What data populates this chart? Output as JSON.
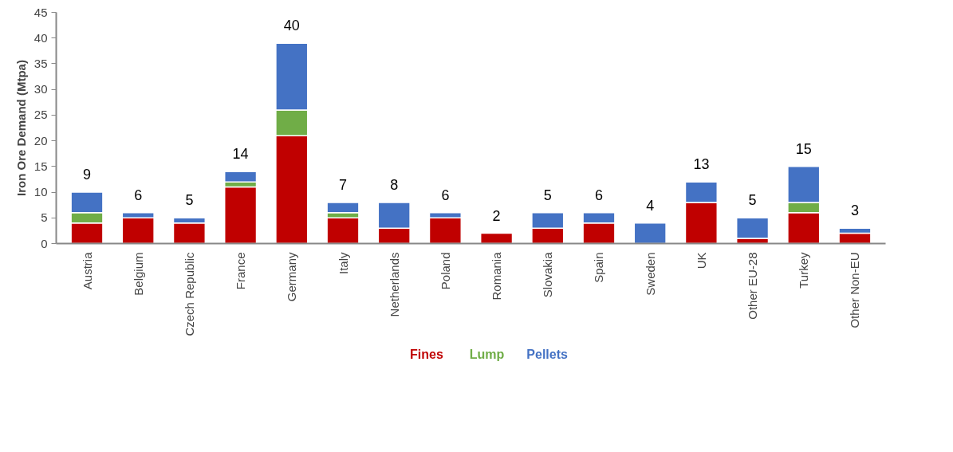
{
  "chart_data": {
    "type": "bar",
    "stacked": true,
    "ylabel": "Iron Ore Demand (Mtpa)",
    "categories": [
      "Austria",
      "Belgium",
      "Czech Republic",
      "France",
      "Germany",
      "Italy",
      "Netherlands",
      "Poland",
      "Romania",
      "Slovakia",
      "Spain",
      "Sweden",
      "UK",
      "Other EU-28",
      "Turkey",
      "Other Non-EU"
    ],
    "series": [
      {
        "name": "Fines",
        "color": "#c00000",
        "values": [
          4,
          5,
          4,
          11,
          21,
          5,
          3,
          5,
          2,
          3,
          4,
          0,
          8,
          1,
          6,
          2
        ]
      },
      {
        "name": "Lump",
        "color": "#70ad47",
        "values": [
          2,
          0,
          0,
          1,
          5,
          1,
          0,
          0,
          0,
          0,
          0,
          0,
          0,
          0,
          2,
          0
        ]
      },
      {
        "name": "Pellets",
        "color": "#4472c4",
        "values": [
          4,
          1,
          1,
          2,
          13,
          2,
          5,
          1,
          0,
          3,
          2,
          4,
          4,
          4,
          7,
          1
        ]
      }
    ],
    "totals": [
      "9",
      "6",
      "5",
      "14",
      "40",
      "7",
      "8",
      "6",
      "2",
      "5",
      "6",
      "4",
      "13",
      "5",
      "15",
      "3"
    ],
    "ylim": [
      0,
      45
    ],
    "yticks": [
      0,
      5,
      10,
      15,
      20,
      25,
      30,
      35,
      40,
      45
    ],
    "grid": false,
    "legend": "bottom"
  }
}
